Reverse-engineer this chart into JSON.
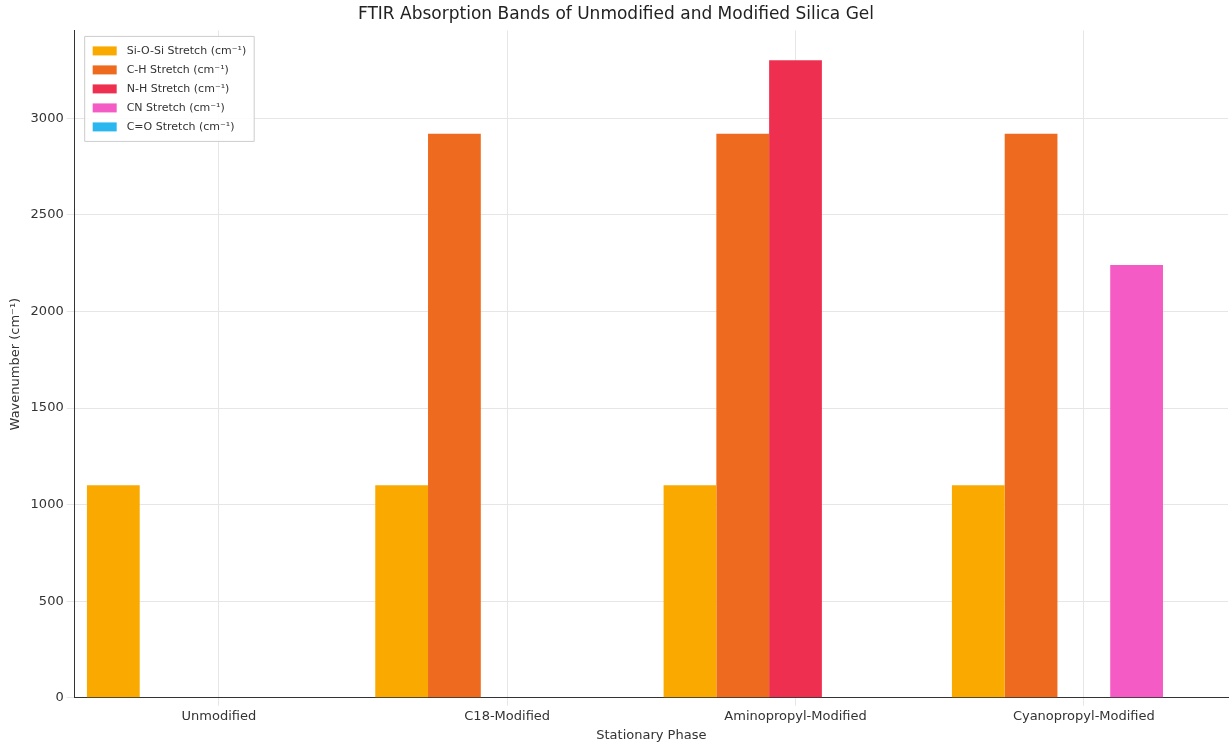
{
  "chart_data": {
    "type": "bar",
    "title": "FTIR Absorption Bands of Unmodified and Modified Silica Gel",
    "xlabel": "Stationary Phase",
    "ylabel": "Wavenumber (cm⁻¹)",
    "categories": [
      "Unmodified",
      "C18-Modified",
      "Aminopropyl-Modified",
      "Cyanopropyl-Modified"
    ],
    "series": [
      {
        "name": "Si-O-Si Stretch (cm⁻¹)",
        "color": "#f9a900",
        "values": [
          1100,
          1100,
          1100,
          1100
        ]
      },
      {
        "name": "C-H Stretch (cm⁻¹)",
        "color": "#ee6a1f",
        "values": [
          null,
          2920,
          2920,
          2920
        ]
      },
      {
        "name": "N-H Stretch (cm⁻¹)",
        "color": "#ee2f50",
        "values": [
          null,
          null,
          3300,
          null
        ]
      },
      {
        "name": "CN Stretch (cm⁻¹)",
        "color": "#f55bc4",
        "values": [
          null,
          null,
          null,
          2240
        ]
      },
      {
        "name": "C=O Stretch (cm⁻¹)",
        "color": "#2ab7f0",
        "values": [
          null,
          null,
          null,
          null
        ]
      }
    ],
    "ylim": [
      0,
      3455
    ],
    "yticks": [
      0,
      500,
      1000,
      1500,
      2000,
      2500,
      3000
    ],
    "grid": true,
    "legend": "top left"
  }
}
